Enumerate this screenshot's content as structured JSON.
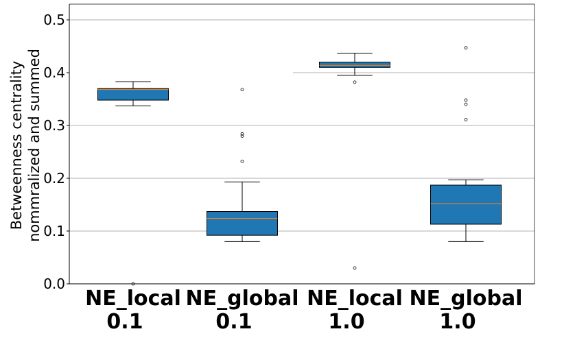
{
  "chart_data": {
    "type": "box",
    "ylabel_lines": [
      "Betweenness centrality",
      "nommralized and summed"
    ],
    "ylim": [
      0.0,
      0.5
    ],
    "yticks": [
      "0.0",
      "0.1",
      "0.2",
      "0.3",
      "0.4",
      "0.5"
    ],
    "ytick_values": [
      0.0,
      0.1,
      0.2,
      0.3,
      0.4,
      0.5
    ],
    "grid": "horizontal",
    "box_color": "#1f77b4",
    "median_color": "#ff7f0e",
    "categories": [
      {
        "line1": "NE_local",
        "line2": "0.1"
      },
      {
        "line1": "NE_global",
        "line2": "0.1"
      },
      {
        "line1": "NE_local",
        "line2": "1.0"
      },
      {
        "line1": "NE_global",
        "line2": "1.0"
      }
    ],
    "boxes": [
      {
        "whisker_low": 0.337,
        "q1": 0.348,
        "median": 0.368,
        "q3": 0.37,
        "whisker_high": 0.383,
        "outliers": [
          0.0
        ]
      },
      {
        "whisker_low": 0.08,
        "q1": 0.092,
        "median": 0.124,
        "q3": 0.137,
        "whisker_high": 0.193,
        "outliers": [
          0.232,
          0.28,
          0.284,
          0.368
        ]
      },
      {
        "whisker_low": 0.395,
        "q1": 0.41,
        "median": 0.414,
        "q3": 0.42,
        "whisker_high": 0.437,
        "outliers": [
          0.03,
          0.382
        ]
      },
      {
        "whisker_low": 0.08,
        "q1": 0.113,
        "median": 0.152,
        "q3": 0.187,
        "whisker_high": 0.197,
        "outliers": [
          0.311,
          0.34,
          0.348,
          0.447
        ]
      }
    ]
  }
}
